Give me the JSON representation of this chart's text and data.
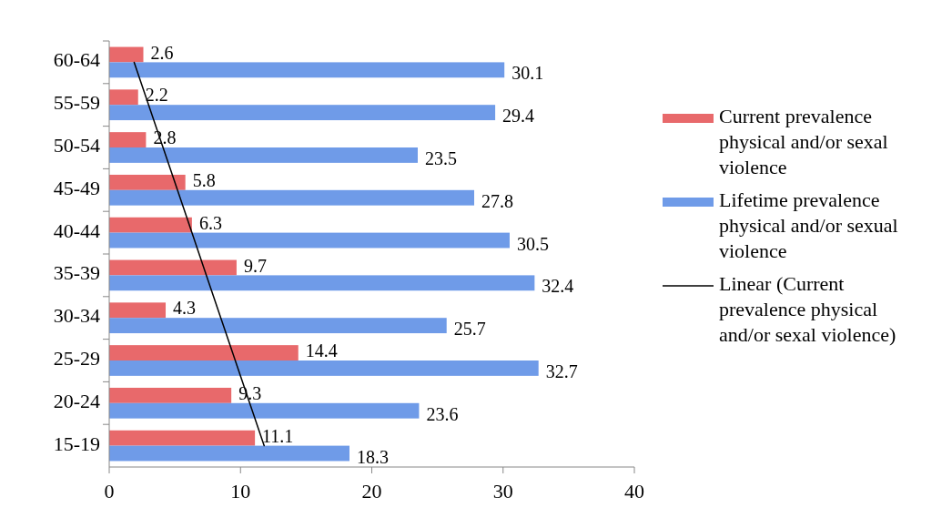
{
  "chart_data": {
    "type": "bar",
    "orientation": "horizontal",
    "categories": [
      "60-64",
      "55-59",
      "50-54",
      "45-49",
      "40-44",
      "35-39",
      "30-34",
      "25-29",
      "20-24",
      "15-19"
    ],
    "series": [
      {
        "name": "Current prevalence physical and/or sexal violence",
        "color": "#e8696b",
        "values": [
          2.6,
          2.2,
          2.8,
          5.8,
          6.3,
          9.7,
          4.3,
          14.4,
          9.3,
          11.1
        ],
        "value_labels": [
          "2.6",
          "2.2",
          "2.8",
          "5.8",
          "6.3",
          "9.7",
          "4.3",
          "14.4",
          "9.3",
          "11.1"
        ]
      },
      {
        "name": "Lifetime prevalence physical and/or sexual violence",
        "color": "#6f9be8",
        "values": [
          30.1,
          29.4,
          23.5,
          27.8,
          30.5,
          32.4,
          25.7,
          32.7,
          23.6,
          18.3
        ],
        "value_labels": [
          "30.1",
          "29.4",
          "23.5",
          "27.8",
          "30.5",
          "32.4",
          "25.7",
          "32.7",
          "23.6",
          "18.3"
        ]
      },
      {
        "name": "Linear (Current prevalence physical and/or sexal violence)",
        "type": "line",
        "color": "#000000",
        "values": [
          1.9,
          3.0,
          4.1,
          5.2,
          6.3,
          7.4,
          8.5,
          9.6,
          10.7,
          11.8
        ]
      }
    ],
    "xlim": [
      0,
      40
    ],
    "xticks": [
      0,
      10,
      20,
      30,
      40
    ],
    "grid": false,
    "legend": "right"
  }
}
